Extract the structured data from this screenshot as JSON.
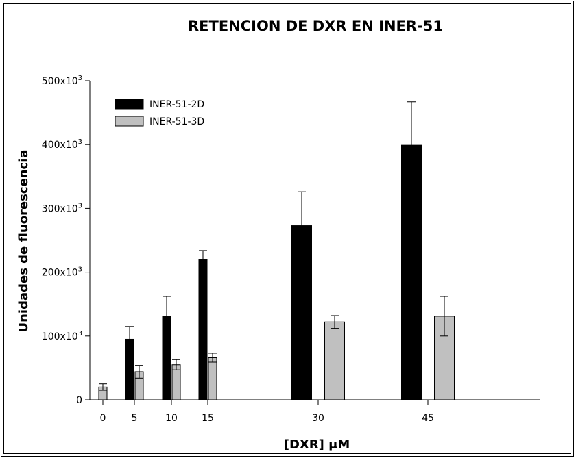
{
  "chart_data": {
    "type": "bar",
    "title": "RETENCION DE DXR EN INER-51",
    "xlabel": "[DXR] μM",
    "ylabel": "Unidades de fluorescencia",
    "x_ticks": [
      "0",
      "5",
      "10",
      "15",
      "30",
      "45"
    ],
    "y_ticks": [
      {
        "value": 0,
        "base": "0",
        "exp": ""
      },
      {
        "value": 100000,
        "base": "100x10",
        "exp": "3"
      },
      {
        "value": 200000,
        "base": "200x10",
        "exp": "3"
      },
      {
        "value": 300000,
        "base": "300x10",
        "exp": "3"
      },
      {
        "value": 400000,
        "base": "400x10",
        "exp": "3"
      },
      {
        "value": 500000,
        "base": "500x10",
        "exp": "3"
      }
    ],
    "ylim": [
      0,
      500000
    ],
    "legend_position": "top-left",
    "series": [
      {
        "name": "INER-51-2D",
        "color": "#000000",
        "x": [
          5,
          10,
          15,
          30,
          45
        ],
        "values": [
          95000,
          131000,
          220000,
          273000,
          399000
        ],
        "errors": [
          20000,
          31000,
          14000,
          53000,
          68000
        ]
      },
      {
        "name": "INER-51-3D",
        "color": "#c0c0c0",
        "x": [
          0,
          5,
          10,
          15,
          30,
          45
        ],
        "values": [
          20000,
          44000,
          55000,
          66000,
          122000,
          131000
        ],
        "errors": [
          5000,
          10000,
          8000,
          7000,
          10000,
          31000
        ]
      }
    ]
  }
}
